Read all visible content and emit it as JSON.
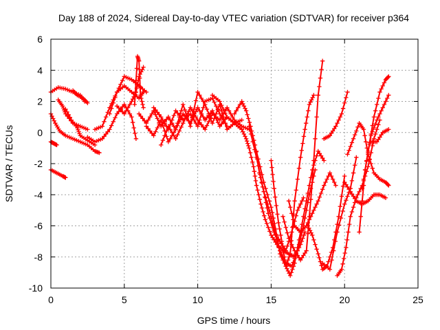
{
  "chart_data": {
    "type": "scatter",
    "title": "Day 188 of 2024, Sidereal Day-to-day VTEC variation (SDTVAR) for receiver p364",
    "xlabel": "GPS time / hours",
    "ylabel": "SDTVAR / TECUs",
    "xlim": [
      0,
      25
    ],
    "ylim": [
      -10,
      6
    ],
    "xticks": [
      "0",
      "5",
      "10",
      "15",
      "20",
      "25"
    ],
    "yticks": [
      "-10",
      "-8",
      "-6",
      "-4",
      "-2",
      "0",
      "2",
      "4",
      "6"
    ],
    "grid": true,
    "marker": "+",
    "color": "#ff0000",
    "series": [
      {
        "x": [
          0.0,
          0.5,
          1.0,
          1.5,
          2.0,
          2.3
        ],
        "y": [
          2.6,
          2.9,
          2.8,
          2.6,
          2.4,
          2.0
        ]
      },
      {
        "x": [
          0.0,
          0.3,
          0.6,
          1.0,
          1.5,
          2.0,
          2.5,
          3.0,
          3.3
        ],
        "y": [
          1.2,
          0.6,
          0.1,
          -0.2,
          -0.4,
          -0.6,
          -0.8,
          -1.2,
          -1.3
        ]
      },
      {
        "x": [
          0.0,
          0.2,
          0.4
        ],
        "y": [
          -0.6,
          -0.7,
          -0.8
        ]
      },
      {
        "x": [
          0.0,
          0.4,
          0.8,
          1.0
        ],
        "y": [
          -2.4,
          -2.6,
          -2.8,
          -2.9
        ]
      },
      {
        "x": [
          0.5,
          0.8,
          1.0,
          1.5,
          2.0,
          2.5
        ],
        "y": [
          2.1,
          1.7,
          1.2,
          0.6,
          0.4,
          0.2
        ]
      },
      {
        "x": [
          1.0,
          1.4,
          1.8,
          2.0,
          2.5,
          3.0
        ],
        "y": [
          1.5,
          0.8,
          0.3,
          -0.2,
          -0.5,
          -0.8
        ]
      },
      {
        "x": [
          1.5,
          1.8,
          2.2,
          2.5
        ],
        "y": [
          2.7,
          2.4,
          2.2,
          1.9
        ]
      },
      {
        "x": [
          2.5,
          3.0,
          3.5,
          4.0,
          4.5,
          5.0,
          5.5,
          5.8
        ],
        "y": [
          -0.3,
          -0.6,
          -0.4,
          0.2,
          1.2,
          1.8,
          1.0,
          -0.4
        ]
      },
      {
        "x": [
          3.0,
          3.5,
          4.0,
          4.5,
          5.0,
          5.5,
          6.0,
          6.3
        ],
        "y": [
          0.2,
          0.4,
          1.6,
          2.6,
          3.0,
          2.6,
          2.2,
          2.6
        ]
      },
      {
        "x": [
          4.0,
          4.5,
          5.0,
          5.5,
          6.0,
          6.5
        ],
        "y": [
          1.2,
          2.6,
          3.6,
          3.4,
          3.0,
          2.6
        ]
      },
      {
        "x": [
          4.5,
          5.0,
          5.5,
          5.8,
          6.0,
          6.3
        ],
        "y": [
          1.7,
          1.2,
          2.0,
          2.6,
          3.6,
          4.2
        ]
      },
      {
        "x": [
          5.7,
          5.9,
          6.0,
          6.1,
          6.3
        ],
        "y": [
          1.8,
          4.9,
          4.6,
          2.4,
          1.6
        ]
      },
      {
        "x": [
          6.0,
          6.5,
          7.0,
          7.5,
          8.0,
          8.5,
          9.0,
          9.5,
          10.0,
          10.5,
          11.0,
          11.5,
          12.0,
          12.5,
          13.0
        ],
        "y": [
          1.2,
          0.6,
          1.4,
          0.4,
          1.0,
          0.2,
          1.2,
          0.6,
          1.6,
          0.8,
          1.4,
          0.4,
          1.0,
          0.6,
          0.8
        ]
      },
      {
        "x": [
          6.5,
          7.0,
          7.5,
          8.0,
          8.5,
          9.0,
          9.5,
          10.0,
          10.5,
          11.0,
          11.5,
          12.0,
          12.5,
          13.0
        ],
        "y": [
          0.4,
          -0.2,
          0.8,
          -0.6,
          0.2,
          1.8,
          0.4,
          2.6,
          1.8,
          0.6,
          1.8,
          0.2,
          0.6,
          0.2
        ]
      },
      {
        "x": [
          7.0,
          7.5,
          8.0,
          8.5,
          9.0,
          9.5,
          10.0,
          10.5,
          11.0,
          11.5,
          12.0
        ],
        "y": [
          1.6,
          1.0,
          0.2,
          1.4,
          0.8,
          1.2,
          0.4,
          2.0,
          2.2,
          1.2,
          0.4
        ]
      },
      {
        "x": [
          7.5,
          8.0,
          8.5,
          9.0,
          9.5,
          10.0,
          10.5,
          11.0,
          11.5,
          12.0,
          12.5,
          13.0,
          13.5
        ],
        "y": [
          -0.8,
          0.4,
          -0.4,
          0.6,
          1.6,
          0.8,
          0.2,
          1.2,
          0.8,
          1.6,
          0.8,
          0.4,
          0.2
        ]
      },
      {
        "x": [
          11.0,
          11.5,
          12.0,
          12.5,
          13.0,
          13.3,
          13.5,
          13.8,
          14.0,
          14.3,
          14.6,
          15.0,
          15.4,
          15.8,
          16.2,
          16.6,
          17.0,
          17.3
        ],
        "y": [
          2.4,
          2.0,
          1.0,
          0.6,
          0.2,
          -0.4,
          -1.0,
          -2.2,
          -3.4,
          -4.6,
          -5.6,
          -6.6,
          -7.2,
          -7.6,
          -7.8,
          -8.0,
          -7.2,
          -6.4
        ]
      },
      {
        "x": [
          12.5,
          13.0,
          13.3,
          13.6,
          13.9,
          14.2,
          14.5,
          14.8,
          15.2,
          15.6,
          16.0,
          16.4,
          16.8,
          17.2
        ],
        "y": [
          1.2,
          2.0,
          1.4,
          0.4,
          -0.8,
          -2.6,
          -3.8,
          -5.2,
          -6.4,
          -7.0,
          -7.6,
          -6.4,
          -5.0,
          -4.2
        ]
      },
      {
        "x": [
          13.5,
          14.0,
          14.5,
          15.0,
          15.3,
          15.6,
          16.0,
          16.4,
          16.8,
          17.2,
          17.6,
          18.0
        ],
        "y": [
          0.4,
          -1.6,
          -3.8,
          -5.4,
          -6.6,
          -7.6,
          -8.4,
          -8.6,
          -7.6,
          -6.0,
          -4.0,
          -2.4
        ]
      },
      {
        "x": [
          14.0,
          14.5,
          15.0,
          15.3,
          15.6,
          16.0,
          16.3,
          16.6,
          17.0,
          17.4,
          17.8,
          18.2,
          18.6
        ],
        "y": [
          -1.2,
          -3.2,
          -4.8,
          -6.2,
          -7.8,
          -8.6,
          -9.2,
          -8.4,
          -6.4,
          -4.4,
          -2.4,
          -1.2,
          -1.8
        ]
      },
      {
        "x": [
          15.0,
          15.2,
          15.5,
          15.8,
          16.0,
          16.3,
          16.6,
          17.0,
          17.3,
          17.6,
          17.9
        ],
        "y": [
          -1.8,
          -3.6,
          -5.8,
          -7.4,
          -8.6,
          -7.8,
          -4.4,
          -1.6,
          0.2,
          1.8,
          2.4
        ]
      },
      {
        "x": [
          15.8,
          16.2,
          16.6,
          17.0,
          17.4,
          17.8,
          18.2,
          18.5
        ],
        "y": [
          -5.4,
          -6.8,
          -7.6,
          -8.2,
          -7.6,
          -3.2,
          2.4,
          4.6
        ]
      },
      {
        "x": [
          16.2,
          16.6,
          17.0,
          17.4,
          17.8,
          18.2,
          18.6,
          19.0,
          19.4
        ],
        "y": [
          -4.4,
          -6.0,
          -6.4,
          -6.0,
          -5.2,
          -4.4,
          -3.4,
          -2.6,
          -3.4
        ]
      },
      {
        "x": [
          17.5,
          17.8,
          18.2,
          18.5,
          18.8,
          19.2,
          19.6,
          20.0
        ],
        "y": [
          -6.0,
          -6.6,
          -7.8,
          -8.8,
          -8.6,
          -7.4,
          -5.4,
          -2.8
        ]
      },
      {
        "x": [
          18.5,
          19.0,
          19.5,
          20.0,
          20.4,
          20.8
        ],
        "y": [
          -8.4,
          -8.8,
          -6.4,
          -4.6,
          -3.6,
          -1.6
        ]
      },
      {
        "x": [
          19.5,
          19.8,
          20.1,
          20.4,
          20.8,
          21.2,
          21.6,
          22.0,
          22.4
        ],
        "y": [
          -9.2,
          -8.8,
          -7.4,
          -5.4,
          -4.2,
          -3.4,
          -2.2,
          -0.4,
          0.8
        ]
      },
      {
        "x": [
          20.0,
          20.4,
          20.8,
          21.2,
          21.6,
          22.0,
          22.4,
          22.8
        ],
        "y": [
          -3.2,
          -3.8,
          -4.4,
          -4.6,
          -4.4,
          -4.0,
          -4.0,
          -4.2
        ]
      },
      {
        "x": [
          18.6,
          19.0,
          19.4,
          19.8,
          20.2
        ],
        "y": [
          -0.4,
          -0.2,
          0.4,
          1.2,
          2.6
        ]
      },
      {
        "x": [
          20.2,
          20.6,
          21.0,
          21.3,
          21.6,
          22.0,
          22.4,
          22.8,
          23.0
        ],
        "y": [
          -1.4,
          -0.4,
          0.6,
          0.2,
          -1.4,
          -2.6,
          -3.0,
          -3.2,
          -3.4
        ]
      },
      {
        "x": [
          21.0,
          21.4,
          21.8,
          22.2,
          22.6,
          23.0
        ],
        "y": [
          -6.4,
          -2.4,
          -0.2,
          0.8,
          1.6,
          2.4
        ]
      },
      {
        "x": [
          21.2,
          21.6,
          22.0,
          22.4,
          22.8,
          23.0
        ],
        "y": [
          -3.6,
          -1.2,
          1.0,
          2.6,
          3.4,
          3.6
        ]
      },
      {
        "x": [
          21.8,
          22.2,
          22.6,
          23.0
        ],
        "y": [
          -0.6,
          -0.6,
          0.0,
          0.2
        ]
      }
    ]
  }
}
